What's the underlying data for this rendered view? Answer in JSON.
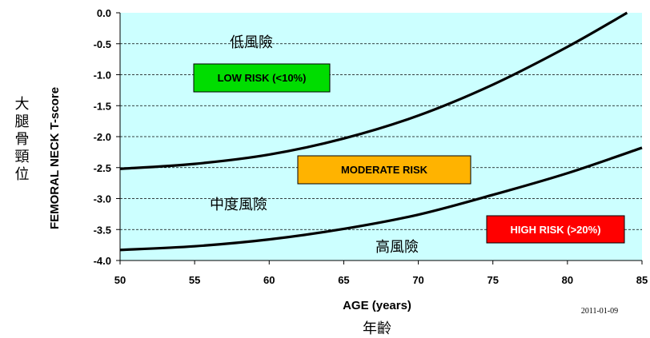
{
  "chart_data": {
    "type": "line",
    "xlabel": "AGE (years)",
    "ylabel": "FEMORAL NECK T-score",
    "xlabel_cjk": "年齡",
    "ylabel_cjk": "大腿骨頸位",
    "xlim": [
      50,
      85
    ],
    "ylim": [
      -4.0,
      0.0
    ],
    "x_ticks": [
      "50",
      "55",
      "60",
      "65",
      "70",
      "75",
      "80",
      "85"
    ],
    "y_ticks": [
      "0.0",
      "-0.5",
      "-1.0",
      "-1.5",
      "-2.0",
      "-2.5",
      "-3.0",
      "-3.5",
      "-4.0"
    ],
    "grid": "horizontal dashed",
    "background": "#ccffff",
    "series": [
      {
        "x": [
          50,
          55,
          60,
          65,
          70,
          75,
          80,
          84
        ],
        "y": [
          -2.52,
          -2.44,
          -2.29,
          -2.03,
          -1.66,
          -1.16,
          -0.55,
          0.0
        ]
      },
      {
        "x": [
          50,
          55,
          60,
          65,
          70,
          75,
          80,
          85
        ],
        "y": [
          -3.83,
          -3.77,
          -3.66,
          -3.49,
          -3.26,
          -2.94,
          -2.59,
          -2.18
        ]
      }
    ],
    "zones": [
      {
        "label": "LOW RISK (<10%)",
        "cjk": "低風險",
        "color": "#00dd00",
        "text_color": "#000000"
      },
      {
        "label": "MODERATE RISK",
        "cjk": "中度風險",
        "color": "#ffb300",
        "text_color": "#000000"
      },
      {
        "label": "HIGH RISK (>20%)",
        "cjk": "高風險",
        "color": "#ff0000",
        "text_color": "#ffffff"
      }
    ],
    "date_stamp": "2011-01-09"
  }
}
